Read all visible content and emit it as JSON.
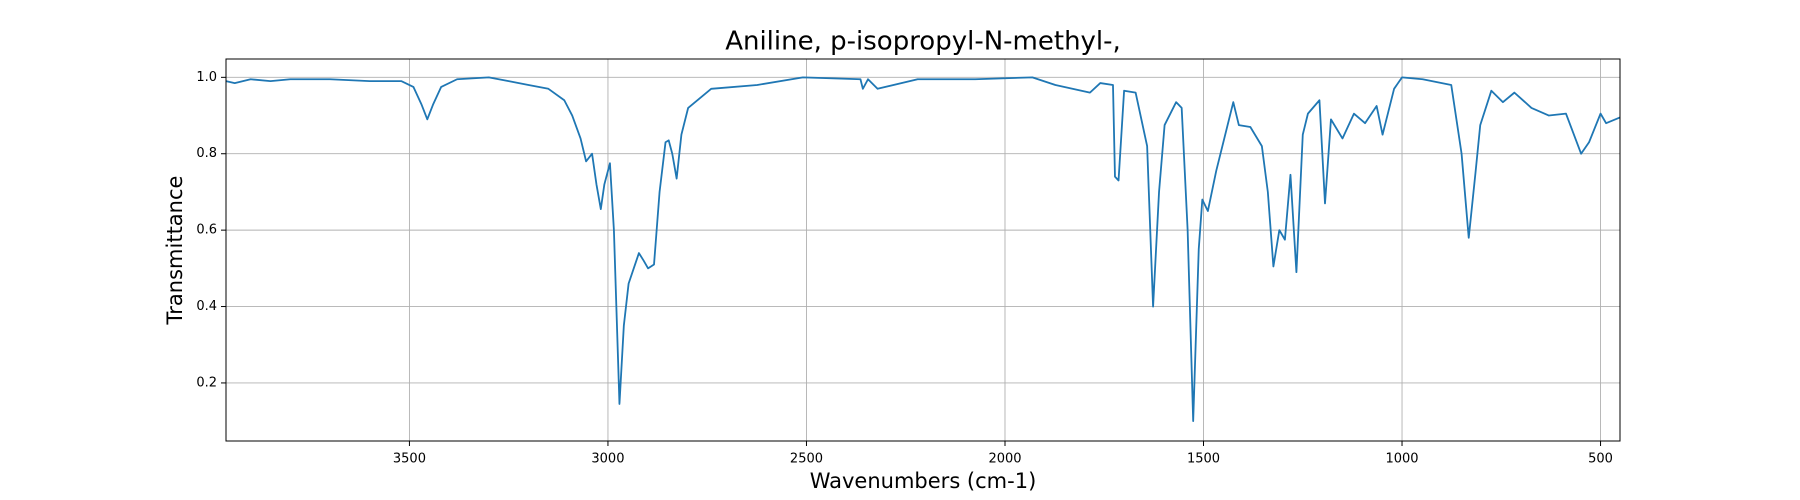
{
  "chart_data": {
    "type": "line",
    "title": "Aniline, p-isopropyl-N-methyl-,",
    "x_label": "Wavenumbers (cm-1)",
    "y_label": "Transmittance",
    "x": [
      3962,
      3940,
      3900,
      3850,
      3800,
      3700,
      3600,
      3520,
      3490,
      3470,
      3455,
      3440,
      3420,
      3380,
      3300,
      3250,
      3200,
      3150,
      3110,
      3090,
      3069,
      3055,
      3040,
      3029,
      3018,
      3009,
      2995,
      2985,
      2971,
      2960,
      2948,
      2935,
      2922,
      2910,
      2899,
      2884,
      2870,
      2855,
      2847,
      2838,
      2827,
      2815,
      2798,
      2740,
      2624,
      2509,
      2364,
      2358,
      2345,
      2321,
      2220,
      2075,
      1931,
      1873,
      1786,
      1760,
      1728,
      1723,
      1714,
      1700,
      1671,
      1642,
      1627,
      1612,
      1598,
      1569,
      1555,
      1540,
      1526,
      1512,
      1503,
      1489,
      1468,
      1425,
      1411,
      1382,
      1353,
      1338,
      1324,
      1309,
      1295,
      1281,
      1266,
      1250,
      1237,
      1208,
      1194,
      1179,
      1150,
      1121,
      1093,
      1064,
      1049,
      1020,
      1000,
      948,
      876,
      850,
      832,
      815,
      803,
      775,
      746,
      717,
      674,
      630,
      587,
      549,
      529,
      500,
      486,
      451
    ],
    "values": [
      0.99,
      0.985,
      0.995,
      0.99,
      0.995,
      0.995,
      0.99,
      0.99,
      0.975,
      0.93,
      0.89,
      0.93,
      0.975,
      0.995,
      1.0,
      0.99,
      0.98,
      0.97,
      0.94,
      0.9,
      0.84,
      0.78,
      0.8,
      0.72,
      0.655,
      0.72,
      0.775,
      0.6,
      0.145,
      0.35,
      0.46,
      0.5,
      0.54,
      0.52,
      0.5,
      0.51,
      0.7,
      0.83,
      0.835,
      0.8,
      0.735,
      0.85,
      0.92,
      0.97,
      0.98,
      1.0,
      0.995,
      0.97,
      0.995,
      0.97,
      0.995,
      0.995,
      1.0,
      0.98,
      0.96,
      0.985,
      0.98,
      0.74,
      0.73,
      0.965,
      0.96,
      0.82,
      0.4,
      0.7,
      0.875,
      0.935,
      0.92,
      0.6,
      0.1,
      0.55,
      0.68,
      0.65,
      0.755,
      0.935,
      0.875,
      0.87,
      0.82,
      0.7,
      0.505,
      0.6,
      0.575,
      0.745,
      0.49,
      0.85,
      0.905,
      0.94,
      0.67,
      0.89,
      0.84,
      0.905,
      0.88,
      0.925,
      0.85,
      0.97,
      1.0,
      0.995,
      0.98,
      0.8,
      0.58,
      0.75,
      0.875,
      0.965,
      0.935,
      0.96,
      0.92,
      0.9,
      0.905,
      0.8,
      0.83,
      0.905,
      0.88,
      0.895
    ],
    "color": "#1f77b4",
    "xlim": [
      3962,
      451
    ],
    "xticks": [
      3500,
      3000,
      2500,
      2000,
      1500,
      1000,
      500
    ],
    "ylim": [
      0.048,
      1.048
    ],
    "yticks": [
      0.2,
      0.4,
      0.6,
      0.8,
      {
        "value": 1,
        "label": "1.0"
      }
    ],
    "grid": true
  }
}
